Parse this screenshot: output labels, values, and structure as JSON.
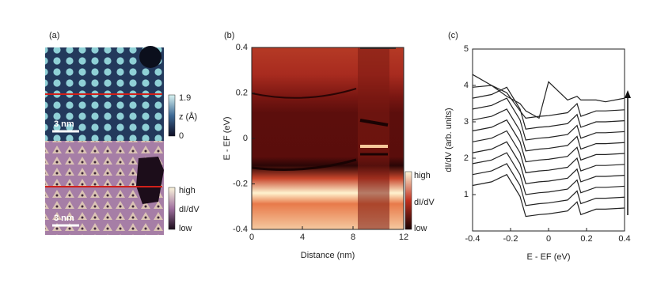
{
  "panel_a": {
    "label": "(a)",
    "scale_bar_top": "3 nm",
    "scale_bar_bottom": "3 nm",
    "colorbar_top": {
      "max": "1.9",
      "title": "z (Å)",
      "min": "0"
    },
    "colorbar_bottom": {
      "max": "high",
      "title": "dI/dV",
      "min": "low"
    }
  },
  "chart_data": [
    {
      "type": "heatmap",
      "panel": "(b)",
      "x_label": "Distance (nm)",
      "y_label": "E - EF (eV)",
      "xlim": [
        0,
        12
      ],
      "xticks": [
        0,
        4,
        8,
        12
      ],
      "ylim": [
        -0.4,
        0.4
      ],
      "yticks": [
        -0.4,
        -0.2,
        0,
        0.2,
        0.4
      ],
      "colorbar": {
        "max": "high",
        "title": "dI/dV",
        "min": "low"
      }
    },
    {
      "type": "line",
      "panel": "(c)",
      "x_label": "E - EF (eV)",
      "y_label": "dI/dV (arb. units)",
      "xlim": [
        -0.4,
        0.4
      ],
      "xticks": [
        -0.4,
        -0.2,
        0,
        0.2,
        0.4
      ],
      "ylim": [
        0,
        5
      ],
      "yticks": [
        1,
        2,
        3,
        4,
        5
      ],
      "x": [
        -0.4,
        -0.3,
        -0.22,
        -0.15,
        -0.12,
        -0.05,
        0,
        0.1,
        0.15,
        0.17,
        0.25,
        0.3,
        0.4
      ],
      "color": "#222222",
      "series": [
        {
          "values": [
            1.25,
            1.35,
            1.55,
            0.95,
            0.4,
            0.45,
            0.47,
            0.55,
            0.8,
            0.45,
            0.6,
            0.6,
            0.63
          ]
        },
        {
          "values": [
            1.55,
            1.65,
            1.85,
            1.25,
            0.7,
            0.75,
            0.77,
            0.85,
            1.1,
            0.75,
            0.9,
            0.9,
            0.93
          ]
        },
        {
          "values": [
            1.85,
            1.95,
            2.15,
            1.55,
            1.0,
            1.05,
            1.07,
            1.15,
            1.4,
            1.05,
            1.2,
            1.2,
            1.23
          ]
        },
        {
          "values": [
            2.15,
            2.25,
            2.45,
            1.85,
            1.3,
            1.35,
            1.37,
            1.45,
            1.7,
            1.35,
            1.5,
            1.5,
            1.53
          ]
        },
        {
          "values": [
            2.45,
            2.55,
            2.75,
            2.15,
            1.6,
            1.65,
            1.67,
            1.75,
            2.0,
            1.65,
            1.8,
            1.8,
            1.83
          ]
        },
        {
          "values": [
            2.75,
            2.85,
            3.05,
            2.45,
            1.9,
            1.95,
            1.97,
            2.05,
            2.3,
            1.95,
            2.1,
            2.1,
            2.13
          ]
        },
        {
          "values": [
            3.05,
            3.15,
            3.35,
            2.75,
            2.2,
            2.25,
            2.27,
            2.35,
            2.6,
            2.25,
            2.4,
            2.4,
            2.43
          ]
        },
        {
          "values": [
            3.35,
            3.45,
            3.65,
            3.05,
            2.5,
            2.55,
            2.57,
            2.65,
            2.9,
            2.55,
            2.7,
            2.7,
            2.73
          ]
        },
        {
          "values": [
            3.65,
            3.75,
            3.95,
            3.35,
            2.8,
            2.85,
            2.87,
            2.95,
            3.2,
            2.85,
            3.0,
            3.0,
            3.03
          ]
        },
        {
          "values": [
            3.95,
            4.0,
            3.8,
            3.3,
            3.1,
            3.15,
            3.17,
            3.25,
            3.5,
            3.15,
            3.3,
            3.3,
            3.33
          ]
        },
        {
          "values": [
            4.3,
            4.0,
            3.7,
            3.5,
            3.3,
            3.1,
            4.1,
            3.6,
            3.7,
            3.6,
            3.6,
            3.55,
            3.65
          ]
        }
      ]
    }
  ]
}
